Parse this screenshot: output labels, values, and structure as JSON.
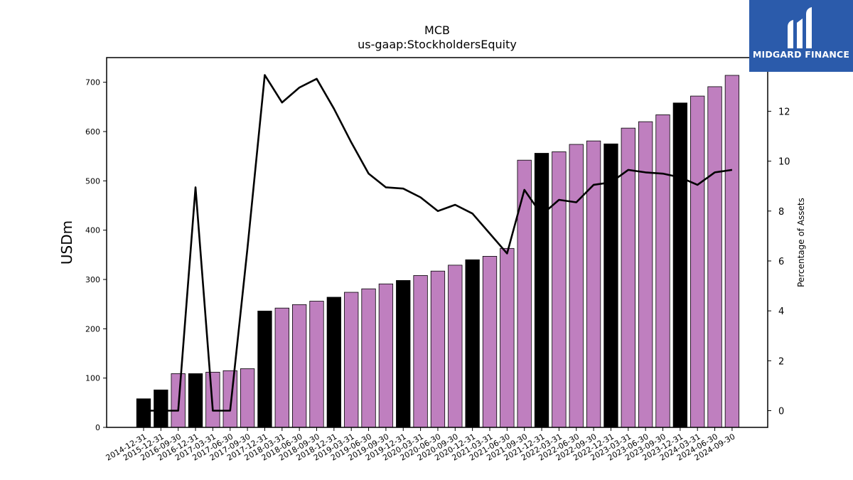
{
  "brand": {
    "name": "MIDGARD FINANCE",
    "color": "#2b5bab",
    "icon": "midgard-logo-icon"
  },
  "chart_data": {
    "type": "bar",
    "title": "MCB",
    "subtitle": "us-gaap:StockholdersEquity",
    "ylabel": "USDm",
    "y2label": "Percentage of Assets",
    "ylim": [
      0,
      750
    ],
    "y2lim": [
      -0.67,
      14.15
    ],
    "yticks": [
      0,
      100,
      200,
      300,
      400,
      500,
      600,
      700
    ],
    "y2ticks": [
      0,
      2,
      4,
      6,
      8,
      10,
      12
    ],
    "grid": false,
    "categories": [
      "2014-12-31",
      "2015-12-31",
      "2016-09-30",
      "2016-12-31",
      "2017-03-31",
      "2017-06-30",
      "2017-09-30",
      "2017-12-31",
      "2018-03-31",
      "2018-06-30",
      "2018-09-30",
      "2018-12-31",
      "2019-03-31",
      "2019-06-30",
      "2019-09-30",
      "2019-12-31",
      "2020-03-31",
      "2020-06-30",
      "2020-09-30",
      "2020-12-31",
      "2021-03-31",
      "2021-06-30",
      "2021-09-30",
      "2021-12-31",
      "2022-03-31",
      "2022-06-30",
      "2022-09-30",
      "2022-12-31",
      "2023-03-31",
      "2023-06-30",
      "2023-09-30",
      "2023-12-31",
      "2024-03-31",
      "2024-06-30",
      "2024-09-30"
    ],
    "series": [
      {
        "kind": "bar",
        "values": [
          58,
          76,
          109,
          109,
          112,
          115,
          119,
          236,
          242,
          249,
          256,
          264,
          274,
          281,
          291,
          298,
          308,
          317,
          329,
          340,
          347,
          363,
          542,
          556,
          559,
          574,
          581,
          575,
          607,
          620,
          634,
          658,
          672,
          691,
          714
        ],
        "annual": [
          true,
          true,
          false,
          true,
          false,
          false,
          false,
          true,
          false,
          false,
          false,
          true,
          false,
          false,
          false,
          true,
          false,
          false,
          false,
          true,
          false,
          false,
          false,
          true,
          false,
          false,
          false,
          true,
          false,
          false,
          false,
          true,
          false,
          false,
          false
        ],
        "color_annual": "#000000",
        "color_interim": "#bf7fbf"
      },
      {
        "kind": "line",
        "axis": "right",
        "color": "#000000",
        "values": [
          0,
          0,
          0,
          8.95,
          0,
          0,
          6.5,
          13.45,
          12.35,
          12.95,
          13.3,
          12.1,
          10.75,
          9.5,
          8.95,
          8.9,
          8.55,
          8.0,
          8.25,
          7.9,
          7.1,
          6.3,
          8.85,
          7.85,
          8.45,
          8.35,
          9.05,
          9.15,
          9.65,
          9.55,
          9.5,
          9.35,
          9.05,
          9.55,
          9.65
        ]
      }
    ]
  }
}
